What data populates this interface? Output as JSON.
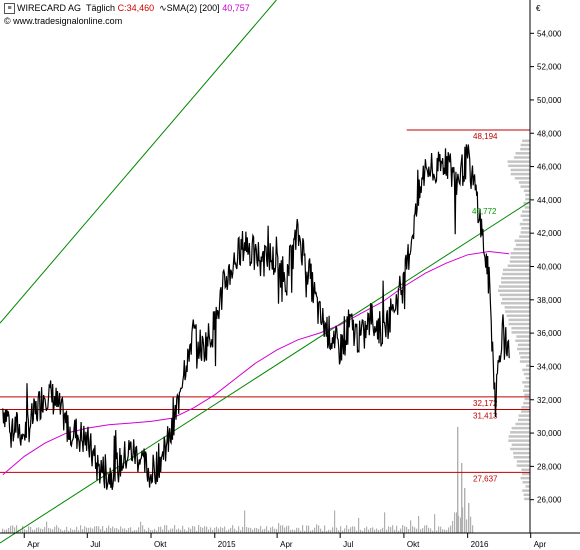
{
  "header": {
    "symbol": "WIRECARD AG",
    "interval": "Täglich",
    "close_label": "C:34,460",
    "sma_label": "SMA(2) [200]",
    "sma_value": "40,757",
    "website": "© www.tradesignalonline.com",
    "close_color": "#d10000",
    "sma_color": "#cc00cc"
  },
  "chart_data": {
    "type": "line",
    "currency": "€",
    "ylim": [
      24000,
      56000
    ],
    "y_ticks": [
      "26,000",
      "28,000",
      "30,000",
      "32,000",
      "34,000",
      "36,000",
      "38,000",
      "40,000",
      "42,000",
      "44,000",
      "46,000",
      "48,000",
      "50,000",
      "52,000",
      "54,000"
    ],
    "x_ticks": [
      "Apr",
      "Jul",
      "Okt",
      "2015",
      "Apr",
      "Jul",
      "Okt",
      "2016",
      "Apr"
    ],
    "price_series": {
      "name": "WIRECARD AG",
      "x": [
        "2014-03-01",
        "2014-03-15",
        "2014-04-01",
        "2014-04-15",
        "2014-05-01",
        "2014-05-15",
        "2014-06-01",
        "2014-06-15",
        "2014-07-01",
        "2014-07-15",
        "2014-08-01",
        "2014-08-15",
        "2014-09-01",
        "2014-09-15",
        "2014-10-01",
        "2014-10-15",
        "2014-11-01",
        "2014-11-15",
        "2014-12-01",
        "2014-12-15",
        "2015-01-01",
        "2015-01-15",
        "2015-02-01",
        "2015-02-15",
        "2015-03-01",
        "2015-03-15",
        "2015-04-01",
        "2015-04-15",
        "2015-05-01",
        "2015-05-15",
        "2015-06-01",
        "2015-06-15",
        "2015-07-01",
        "2015-07-15",
        "2015-08-01",
        "2015-08-15",
        "2015-09-01",
        "2015-09-15",
        "2015-10-01",
        "2015-10-15",
        "2015-11-01",
        "2015-11-15",
        "2015-12-01",
        "2015-12-15",
        "2016-01-01",
        "2016-01-15",
        "2016-02-01",
        "2016-02-10",
        "2016-02-20",
        "2016-03-01"
      ],
      "values": [
        31.5,
        30.5,
        30.0,
        31.0,
        32.5,
        32.0,
        30.5,
        30.0,
        29.5,
        28.0,
        27.5,
        28.0,
        29.0,
        28.5,
        27.5,
        28.5,
        30.0,
        33.5,
        36.0,
        35.0,
        36.5,
        39.0,
        40.5,
        41.5,
        40.5,
        41.0,
        40.0,
        39.5,
        42.0,
        40.0,
        37.0,
        36.0,
        35.0,
        36.5,
        35.5,
        37.0,
        36.0,
        37.5,
        39.0,
        42.5,
        46.0,
        45.5,
        46.5,
        45.0,
        46.5,
        44.0,
        39.0,
        32.0,
        36.5,
        34.5
      ]
    },
    "sma_series": {
      "name": "SMA(2) [200]",
      "x": [
        "2014-03-01",
        "2014-04-01",
        "2014-05-01",
        "2014-06-01",
        "2014-07-01",
        "2014-08-01",
        "2014-09-01",
        "2014-10-01",
        "2014-11-01",
        "2014-12-01",
        "2015-01-01",
        "2015-02-01",
        "2015-03-01",
        "2015-04-01",
        "2015-05-01",
        "2015-06-01",
        "2015-07-01",
        "2015-08-01",
        "2015-09-01",
        "2015-10-01",
        "2015-11-01",
        "2015-12-01",
        "2016-01-01",
        "2016-02-01",
        "2016-03-01"
      ],
      "values": [
        27.5,
        28.6,
        29.4,
        30.0,
        30.3,
        30.5,
        30.6,
        30.7,
        30.9,
        31.5,
        32.3,
        33.3,
        34.2,
        35.0,
        35.6,
        36.0,
        36.5,
        37.2,
        37.9,
        38.8,
        39.6,
        40.2,
        40.7,
        40.9,
        40.76
      ]
    },
    "levels": [
      {
        "value": 48.194,
        "label": "48,194"
      },
      {
        "value": 32.172,
        "label": "32,172"
      },
      {
        "value": 31.413,
        "label": "31,413"
      },
      {
        "value": 27.637,
        "label": "27,637"
      }
    ],
    "trend_channel": [
      {
        "label": "",
        "start": {
          "x": "2014-02-25",
          "y": 23.4
        },
        "end": {
          "x": "2016-03-31",
          "y": 43.9
        }
      },
      {
        "label": "",
        "start": {
          "x": "2014-02-25",
          "y": 36.6
        },
        "end": {
          "x": "2015-03-31",
          "y": 56.0
        }
      }
    ],
    "trend_value_label": "40,772",
    "grid": false,
    "volume_profile": true,
    "volume_bars": true
  }
}
